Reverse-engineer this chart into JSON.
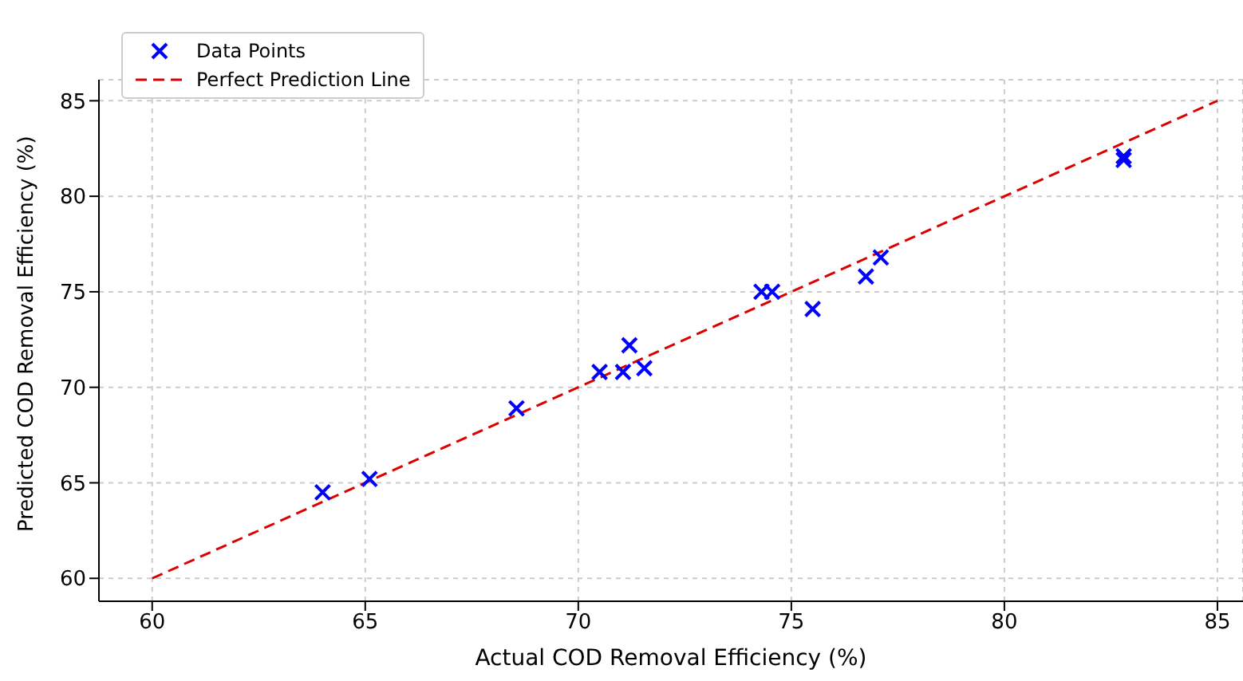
{
  "chart_data": {
    "type": "scatter",
    "xlabel": "Actual COD Removal Efficiency (%)",
    "ylabel": "Predicted COD Removal Efficiency (%)",
    "xlim": [
      58.75,
      85.6
    ],
    "ylim": [
      58.8,
      86.1
    ],
    "xticks": [
      60,
      65,
      70,
      75,
      80,
      85
    ],
    "yticks": [
      60,
      65,
      70,
      75,
      80,
      85
    ],
    "grid": true,
    "legend": "top left",
    "series": [
      {
        "name": "Data Points",
        "marker": "cross",
        "color": "#0000ff",
        "x": [
          64.0,
          65.1,
          68.55,
          70.5,
          71.05,
          71.2,
          71.55,
          74.3,
          74.55,
          75.5,
          76.75,
          77.1,
          82.8,
          82.8
        ],
        "values": [
          64.5,
          65.2,
          68.9,
          70.8,
          70.8,
          72.2,
          71.0,
          75.0,
          75.0,
          74.1,
          75.8,
          76.8,
          82.1,
          81.9
        ]
      },
      {
        "name": "Perfect Prediction Line",
        "type": "line",
        "marker": "none",
        "line_style": "dashed",
        "color": "#dd0000",
        "x": [
          60,
          85
        ],
        "values": [
          60,
          85
        ]
      }
    ]
  }
}
